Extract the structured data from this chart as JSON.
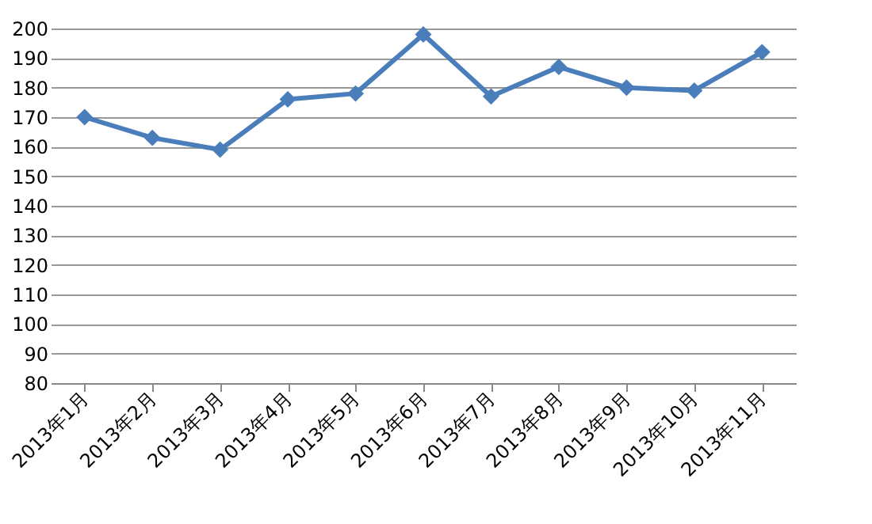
{
  "chart_data": {
    "type": "line",
    "categories": [
      "2013年1月",
      "2013年2月",
      "2013年3月",
      "2013年4月",
      "2013年5月",
      "2013年6月",
      "2013年7月",
      "2013年8月",
      "2013年9月",
      "2013年10月",
      "2013年11月"
    ],
    "series": [
      {
        "color": "#4a7ebb",
        "values": [
          170,
          163,
          159,
          176,
          178,
          198,
          177,
          187,
          180,
          179,
          192
        ]
      }
    ],
    "ylim": [
      80,
      200
    ],
    "yticks": [
      80,
      90,
      100,
      110,
      120,
      130,
      140,
      150,
      160,
      170,
      180,
      190,
      200
    ],
    "grid": "y",
    "marker": "diamond",
    "line_style": "solid"
  }
}
